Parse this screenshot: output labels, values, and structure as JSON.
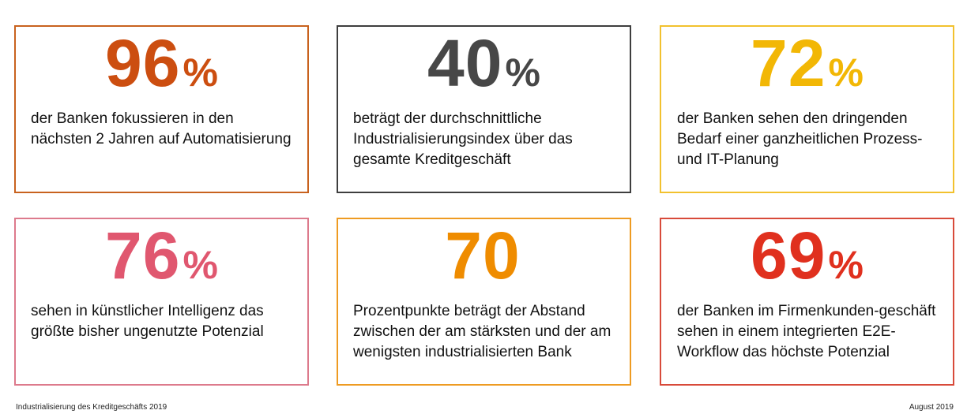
{
  "cards": [
    {
      "number": "96",
      "percent": "%",
      "text": "der Banken fokussieren in den nächsten 2 Jahren auf Automatisierung",
      "color": "#cc4e10",
      "border": "#c8621e"
    },
    {
      "number": "40",
      "percent": "%",
      "text": "beträgt der durchschnittliche Industrialisierungsindex über das gesamte Kreditgeschäft",
      "color": "#474747",
      "border": "#3e3e3e"
    },
    {
      "number": "72",
      "percent": "%",
      "text": "der Banken sehen den dringenden Bedarf einer ganzheitlichen Prozess- und IT-Planung",
      "color": "#f2b705",
      "border": "#f2c12e"
    },
    {
      "number": "76",
      "percent": "%",
      "text": "sehen in künstlicher Intelligenz das größte bisher ungenutzte Potenzial",
      "color": "#e0576f",
      "border": "#dd7a8c"
    },
    {
      "number": "70",
      "percent": "",
      "text": "Prozentpunkte beträgt der Abstand zwischen der am stärksten und der am wenigsten industrialisierten Bank",
      "color": "#ef8c00",
      "border": "#ee9b22"
    },
    {
      "number": "69",
      "percent": "%",
      "text": "der Banken im Firmenkunden-geschäft sehen in einem integrierten E2E-Workflow das höchste Potenzial",
      "color": "#e0301e",
      "border": "#d84a3a"
    }
  ],
  "footer": {
    "left": "Industrialisierung des Kreditgeschäfts 2019",
    "right": "August 2019"
  }
}
